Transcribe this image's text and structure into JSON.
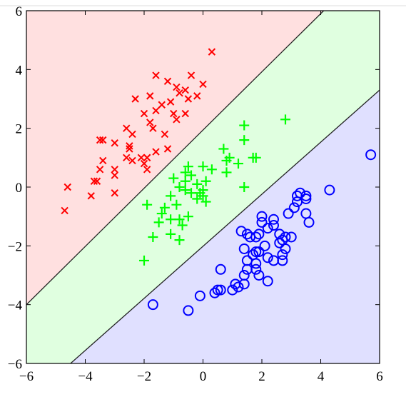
{
  "chart_data": {
    "type": "scatter",
    "title": "",
    "xlabel": "",
    "ylabel": "",
    "xlim": [
      -6,
      6
    ],
    "ylim": [
      -6,
      6
    ],
    "xticks": [
      -6,
      -4,
      -2,
      0,
      2,
      4,
      6
    ],
    "yticks": [
      -6,
      -4,
      -2,
      0,
      2,
      4,
      6
    ],
    "xtick_labels": [
      "−6",
      "−4",
      "−2",
      "0",
      "2",
      "4",
      "6"
    ],
    "ytick_labels": [
      "−6",
      "−4",
      "−2",
      "0",
      "2",
      "4",
      "6"
    ],
    "grid": false,
    "legend": "none",
    "decision_boundaries": [
      {
        "name": "",
        "x": [
          -6,
          4.1
        ],
        "y": [
          -4.0,
          6.0
        ]
      },
      {
        "name": "",
        "x": [
          -4.5,
          6.0
        ],
        "y": [
          -6.0,
          3.3
        ]
      }
    ],
    "regions": [
      {
        "color": "#ffe0e0"
      },
      {
        "color": "#e0ffe0"
      },
      {
        "color": "#e0e0ff"
      }
    ],
    "series": [
      {
        "marker": "x",
        "color": "#ff0000",
        "points": [
          [
            0.3,
            4.6
          ],
          [
            -1.6,
            3.8
          ],
          [
            -1.2,
            3.6
          ],
          [
            -0.4,
            3.8
          ],
          [
            -0.9,
            3.4
          ],
          [
            0.0,
            3.5
          ],
          [
            -0.6,
            3.3
          ],
          [
            -0.2,
            3.1
          ],
          [
            -2.3,
            3.0
          ],
          [
            -1.8,
            3.1
          ],
          [
            -1.4,
            2.8
          ],
          [
            -1.1,
            2.9
          ],
          [
            -0.8,
            3.2
          ],
          [
            -0.5,
            3.0
          ],
          [
            -2.0,
            2.5
          ],
          [
            -1.6,
            2.6
          ],
          [
            -1.0,
            2.5
          ],
          [
            -0.6,
            2.5
          ],
          [
            -0.9,
            2.3
          ],
          [
            -1.8,
            2.2
          ],
          [
            -2.6,
            2.0
          ],
          [
            -2.4,
            1.8
          ],
          [
            -1.7,
            2.0
          ],
          [
            -1.3,
            1.8
          ],
          [
            -3.5,
            1.6
          ],
          [
            -3.4,
            1.6
          ],
          [
            -3.0,
            1.5
          ],
          [
            -2.5,
            1.4
          ],
          [
            -2.5,
            1.3
          ],
          [
            -1.9,
            1.0
          ],
          [
            -1.6,
            1.2
          ],
          [
            -1.2,
            1.3
          ],
          [
            -2.1,
            1.0
          ],
          [
            -1.9,
            1.0
          ],
          [
            -2.6,
            1.0
          ],
          [
            -3.4,
            0.9
          ],
          [
            -3.5,
            0.6
          ],
          [
            -3.0,
            0.6
          ],
          [
            -2.0,
            0.8
          ],
          [
            -2.4,
            0.9
          ],
          [
            -1.9,
            0.6
          ],
          [
            -3.0,
            0.4
          ],
          [
            -3.7,
            0.2
          ],
          [
            -3.6,
            0.2
          ],
          [
            -3.8,
            -0.3
          ],
          [
            -3.0,
            -0.2
          ],
          [
            -4.6,
            0.0
          ],
          [
            -4.7,
            -0.8
          ]
        ]
      },
      {
        "marker": "+",
        "color": "#00ff00",
        "points": [
          [
            2.8,
            2.3
          ],
          [
            1.4,
            2.1
          ],
          [
            1.4,
            1.6
          ],
          [
            0.7,
            1.3
          ],
          [
            0.9,
            1.0
          ],
          [
            1.7,
            1.0
          ],
          [
            1.8,
            1.0
          ],
          [
            0.8,
            0.9
          ],
          [
            1.2,
            0.8
          ],
          [
            0.0,
            0.7
          ],
          [
            -0.5,
            0.7
          ],
          [
            0.3,
            0.6
          ],
          [
            -0.6,
            0.5
          ],
          [
            0.8,
            0.5
          ],
          [
            -1.0,
            0.3
          ],
          [
            -0.6,
            0.2
          ],
          [
            0.1,
            0.2
          ],
          [
            -0.8,
            0.0
          ],
          [
            -0.6,
            -0.1
          ],
          [
            -0.4,
            -0.2
          ],
          [
            -0.1,
            -0.2
          ],
          [
            0.0,
            -0.3
          ],
          [
            -1.1,
            -0.3
          ],
          [
            -0.2,
            -0.4
          ],
          [
            0.1,
            -0.5
          ],
          [
            -0.9,
            -0.6
          ],
          [
            -1.3,
            -0.7
          ],
          [
            -1.4,
            -0.9
          ],
          [
            -0.5,
            -1.0
          ],
          [
            -0.8,
            -1.1
          ],
          [
            -1.1,
            -1.1
          ],
          [
            -0.7,
            -1.3
          ],
          [
            -1.5,
            -1.2
          ],
          [
            -1.7,
            -1.7
          ],
          [
            -1.1,
            -1.6
          ],
          [
            -0.8,
            -1.8
          ],
          [
            -1.9,
            -0.6
          ],
          [
            -2.0,
            -2.5
          ],
          [
            1.4,
            0.0
          ],
          [
            -0.2,
            0.1
          ],
          [
            0.0,
            -0.1
          ],
          [
            -0.4,
            0.4
          ]
        ]
      },
      {
        "marker": "o",
        "color": "#0000ff",
        "points": [
          [
            5.7,
            1.1
          ],
          [
            4.3,
            -0.1
          ],
          [
            3.5,
            -0.3
          ],
          [
            3.3,
            -0.2
          ],
          [
            3.2,
            -0.3
          ],
          [
            3.5,
            -0.4
          ],
          [
            3.2,
            -0.5
          ],
          [
            3.1,
            -0.7
          ],
          [
            2.9,
            -0.9
          ],
          [
            3.5,
            -0.9
          ],
          [
            3.6,
            -1.2
          ],
          [
            2.0,
            -1.0
          ],
          [
            2.0,
            -1.2
          ],
          [
            2.4,
            -1.1
          ],
          [
            2.4,
            -1.3
          ],
          [
            2.6,
            -1.6
          ],
          [
            2.2,
            -1.4
          ],
          [
            1.9,
            -1.6
          ],
          [
            1.6,
            -1.7
          ],
          [
            1.8,
            -1.7
          ],
          [
            2.8,
            -1.7
          ],
          [
            3.0,
            -1.7
          ],
          [
            2.7,
            -1.8
          ],
          [
            2.6,
            -1.9
          ],
          [
            2.1,
            -2.0
          ],
          [
            2.8,
            -2.1
          ],
          [
            1.3,
            -1.5
          ],
          [
            1.5,
            -1.6
          ],
          [
            1.4,
            -2.1
          ],
          [
            1.9,
            -2.2
          ],
          [
            1.7,
            -2.3
          ],
          [
            1.8,
            -2.2
          ],
          [
            1.5,
            -2.5
          ],
          [
            2.2,
            -2.4
          ],
          [
            2.4,
            -2.5
          ],
          [
            2.7,
            -2.3
          ],
          [
            2.7,
            -2.5
          ],
          [
            1.5,
            -2.8
          ],
          [
            1.8,
            -2.8
          ],
          [
            1.9,
            -3.0
          ],
          [
            1.4,
            -3.0
          ],
          [
            0.6,
            -2.8
          ],
          [
            2.2,
            -3.2
          ],
          [
            1.4,
            -3.3
          ],
          [
            1.1,
            -3.3
          ],
          [
            1.0,
            -3.5
          ],
          [
            0.5,
            -3.5
          ],
          [
            0.4,
            -3.6
          ],
          [
            0.6,
            -3.5
          ],
          [
            1.2,
            -3.4
          ],
          [
            -0.1,
            -3.7
          ],
          [
            -0.5,
            -4.2
          ],
          [
            -1.7,
            -4.0
          ],
          [
            1.8,
            -2.6
          ]
        ]
      }
    ]
  }
}
